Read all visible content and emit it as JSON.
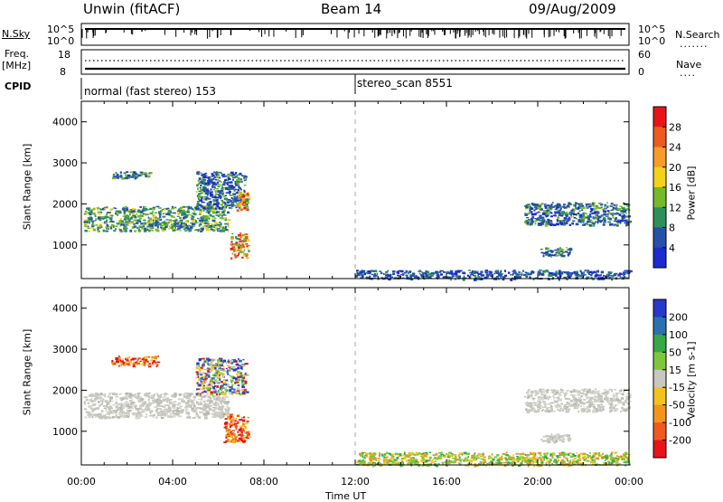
{
  "header": {
    "station": "Unwin (fitACF)",
    "beam": "Beam 14",
    "date": "09/Aug/2009"
  },
  "top_panels": {
    "nsky_label": "N.Sky",
    "nsky_ticks": [
      "10^5",
      "10^0"
    ],
    "nsearch_label": "N.Search",
    "nsearch_ticks": [
      "10^5",
      "10^0"
    ],
    "freq_label": "Freq.",
    "freq_unit": "[MHz]",
    "freq_ticks": [
      "18",
      "8"
    ],
    "nave_label": "Nave",
    "nave_ticks": [
      "60",
      "0"
    ],
    "cpid_label": "CPID",
    "cpid_segments": [
      {
        "text": "normal (fast stereo) 153",
        "start_hour": 0
      },
      {
        "text": "stereo_scan 8551",
        "start_hour": 12
      }
    ]
  },
  "chart_data": [
    {
      "type": "heatmap",
      "name": "power",
      "xlabel": "",
      "ylabel": "Slant Range [km]",
      "xlim": [
        0,
        24
      ],
      "ylim": [
        180,
        4500
      ],
      "yticks": [
        1000,
        2000,
        3000,
        4000
      ],
      "colorbar_label": "Power [dB]",
      "colorbar_ticks": [
        "28",
        "24",
        "20",
        "16",
        "12",
        "8",
        "4"
      ],
      "colorbar_colors": [
        "#e8141a",
        "#ef5a1e",
        "#f79b2a",
        "#f4d21a",
        "#76b92a",
        "#2e8f5a",
        "#2850a8",
        "#1b2bd0"
      ],
      "regions": [
        {
          "x0": 0.1,
          "x1": 6.4,
          "y0": 1350,
          "y1": 1950,
          "level": "mid"
        },
        {
          "x0": 1.3,
          "x1": 3.0,
          "y0": 2650,
          "y1": 2800,
          "level": "low"
        },
        {
          "x0": 5.0,
          "x1": 7.2,
          "y0": 1900,
          "y1": 2800,
          "level": "low"
        },
        {
          "x0": 6.5,
          "x1": 7.3,
          "y0": 700,
          "y1": 1300,
          "level": "high"
        },
        {
          "x0": 6.8,
          "x1": 7.3,
          "y0": 1850,
          "y1": 2300,
          "level": "high"
        },
        {
          "x0": 19.4,
          "x1": 24.0,
          "y0": 1500,
          "y1": 2050,
          "level": "low"
        },
        {
          "x0": 20.1,
          "x1": 21.4,
          "y0": 750,
          "y1": 950,
          "level": "low"
        },
        {
          "x0": 12.0,
          "x1": 24.0,
          "y0": 180,
          "y1": 400,
          "level": "noise"
        }
      ]
    },
    {
      "type": "heatmap",
      "name": "velocity",
      "xlabel": "Time UT",
      "ylabel": "Slant Range [km]",
      "xlim": [
        0,
        24
      ],
      "ylim": [
        180,
        4500
      ],
      "xticks": [
        "00:00",
        "04:00",
        "08:00",
        "12:00",
        "16:00",
        "20:00",
        "00:00"
      ],
      "yticks": [
        1000,
        2000,
        3000,
        4000
      ],
      "colorbar_label": "Velocity [m s-1]",
      "colorbar_ticks": [
        "200",
        "100",
        "50",
        "15",
        "-15",
        "-50",
        "-100",
        "-200"
      ],
      "colorbar_colors": [
        "#2838c8",
        "#2c70b0",
        "#36a848",
        "#7dc83a",
        "#c8c8c0",
        "#f2c21e",
        "#f3951c",
        "#ef5a1e",
        "#e8141a"
      ],
      "regions": [
        {
          "x0": 0.1,
          "x1": 6.4,
          "y0": 1350,
          "y1": 1950,
          "level": "ground"
        },
        {
          "x0": 1.3,
          "x1": 3.3,
          "y0": 2600,
          "y1": 2850,
          "level": "away"
        },
        {
          "x0": 5.0,
          "x1": 7.2,
          "y0": 1900,
          "y1": 2800,
          "level": "mixed"
        },
        {
          "x0": 6.2,
          "x1": 7.3,
          "y0": 750,
          "y1": 1450,
          "level": "away"
        },
        {
          "x0": 19.4,
          "x1": 24.0,
          "y0": 1500,
          "y1": 2050,
          "level": "ground"
        },
        {
          "x0": 20.1,
          "x1": 21.4,
          "y0": 750,
          "y1": 950,
          "level": "ground"
        },
        {
          "x0": 12.0,
          "x1": 24.0,
          "y0": 180,
          "y1": 500,
          "level": "noise"
        }
      ]
    }
  ]
}
